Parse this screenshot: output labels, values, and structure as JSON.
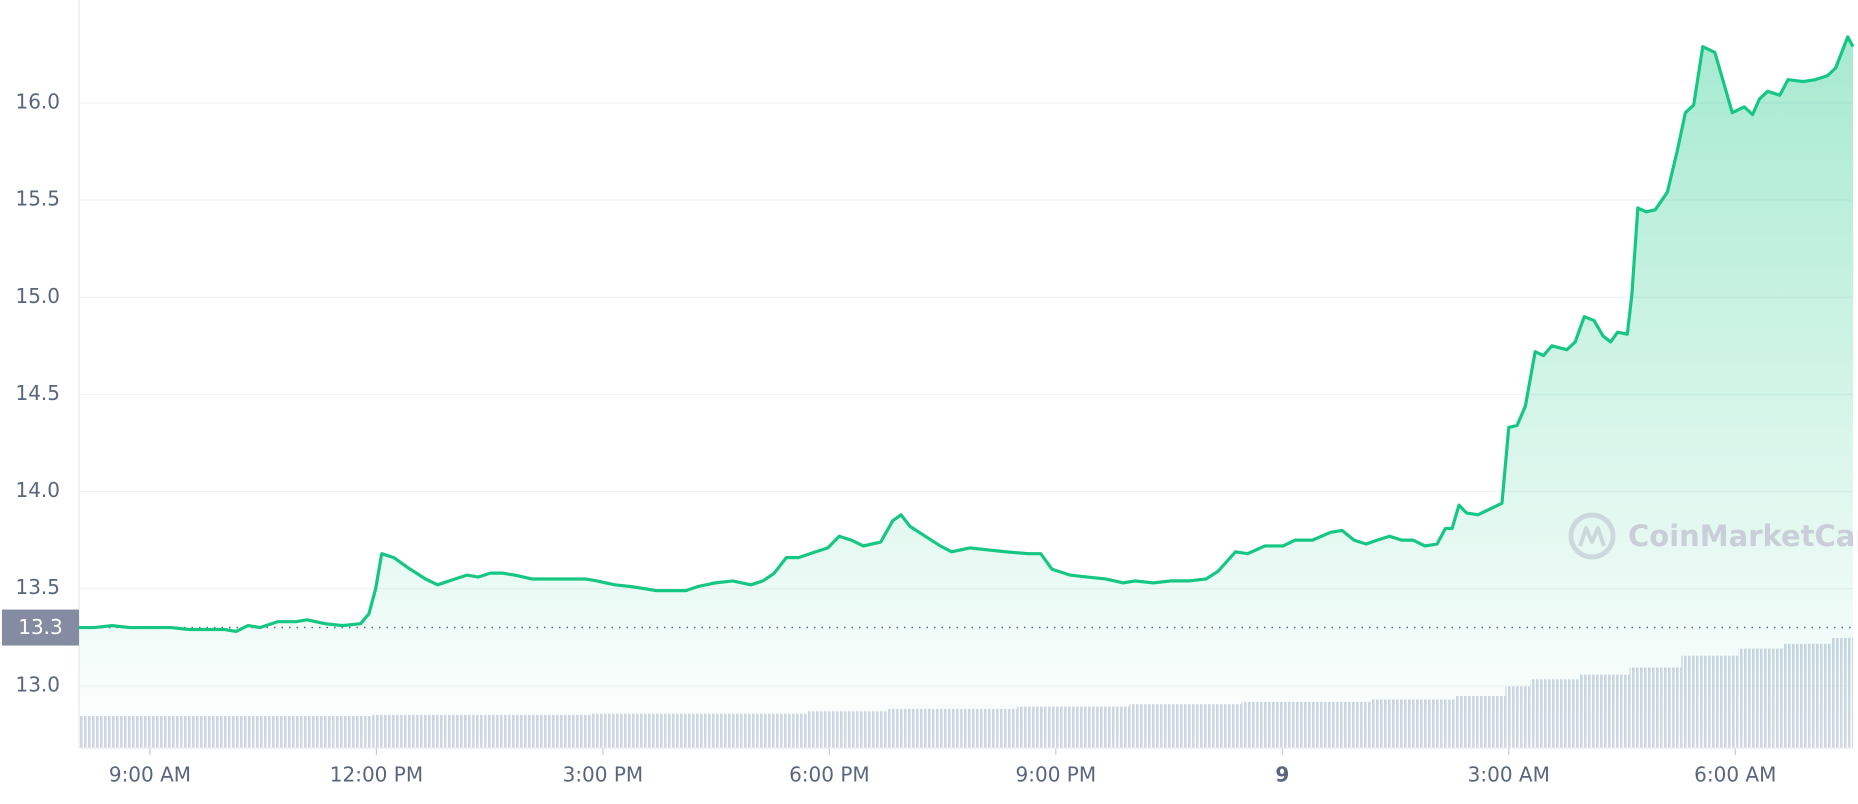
{
  "chart_data": {
    "type": "line",
    "color": "#16c784",
    "x": [
      -0.94,
      -0.74,
      -0.5,
      -0.27,
      0,
      0.28,
      0.52,
      0.75,
      0.99,
      1.14,
      1.3,
      1.46,
      1.69,
      1.93,
      2.08,
      2.32,
      2.55,
      2.79,
      2.9,
      2.99,
      3.07,
      3.23,
      3.41,
      3.65,
      3.81,
      4.04,
      4.2,
      4.35,
      4.51,
      4.67,
      4.83,
      5.06,
      5.3,
      5.53,
      5.77,
      5.92,
      6.16,
      6.39,
      6.71,
      6.94,
      7.1,
      7.25,
      7.49,
      7.72,
      7.96,
      8.12,
      8.27,
      8.43,
      8.59,
      8.82,
      8.98,
      9.13,
      9.29,
      9.45,
      9.68,
      9.84,
      9.95,
      10.07,
      10.31,
      10.47,
      10.62,
      10.86,
      11.09,
      11.33,
      11.64,
      11.8,
      11.95,
      12.19,
      12.42,
      12.66,
      12.89,
      13.05,
      13.29,
      13.52,
      13.76,
      13.99,
      14.15,
      14.38,
      14.54,
      14.77,
      15.01,
      15.17,
      15.4,
      15.64,
      15.79,
      15.95,
      16.11,
      16.26,
      16.42,
      16.58,
      16.73,
      16.89,
      17.05,
      17.16,
      17.25,
      17.34,
      17.44,
      17.59,
      17.75,
      17.91,
      18.0,
      18.11,
      18.22,
      18.35,
      18.46,
      18.57,
      18.77,
      18.88,
      19.0,
      19.13,
      19.25,
      19.35,
      19.44,
      19.57,
      19.63,
      19.71,
      19.82,
      19.94,
      20.1,
      20.23,
      20.34,
      20.45,
      20.57,
      20.73,
      20.85,
      20.96,
      21.12,
      21.23,
      21.32,
      21.43,
      21.59,
      21.7,
      21.9,
      22.06,
      22.22,
      22.33,
      22.49,
      22.56
    ],
    "values": [
      13.3,
      13.3,
      13.31,
      13.3,
      13.3,
      13.3,
      13.29,
      13.29,
      13.29,
      13.28,
      13.31,
      13.3,
      13.33,
      13.33,
      13.34,
      13.32,
      13.31,
      13.32,
      13.37,
      13.5,
      13.68,
      13.66,
      13.61,
      13.55,
      13.52,
      13.55,
      13.57,
      13.56,
      13.58,
      13.58,
      13.57,
      13.55,
      13.55,
      13.55,
      13.55,
      13.54,
      13.52,
      13.51,
      13.49,
      13.49,
      13.49,
      13.51,
      13.53,
      13.54,
      13.52,
      13.54,
      13.58,
      13.66,
      13.66,
      13.69,
      13.71,
      13.77,
      13.75,
      13.72,
      13.74,
      13.85,
      13.88,
      13.82,
      13.76,
      13.72,
      13.69,
      13.71,
      13.7,
      13.69,
      13.68,
      13.68,
      13.6,
      13.57,
      13.56,
      13.55,
      13.53,
      13.54,
      13.53,
      13.54,
      13.54,
      13.55,
      13.59,
      13.69,
      13.68,
      13.72,
      13.72,
      13.75,
      13.75,
      13.79,
      13.8,
      13.75,
      13.73,
      13.75,
      13.77,
      13.75,
      13.75,
      13.72,
      13.73,
      13.81,
      13.81,
      13.93,
      13.89,
      13.88,
      13.91,
      13.94,
      14.33,
      14.34,
      14.44,
      14.72,
      14.7,
      14.75,
      14.73,
      14.77,
      14.9,
      14.88,
      14.8,
      14.77,
      14.82,
      14.81,
      15.01,
      15.46,
      15.44,
      15.45,
      15.54,
      15.75,
      15.95,
      15.99,
      16.29,
      16.26,
      16.1,
      15.95,
      15.98,
      15.94,
      16.02,
      16.06,
      16.04,
      16.12,
      16.11,
      16.12,
      16.14,
      16.18,
      16.34,
      16.29
    ],
    "volume": [
      27,
      27,
      27,
      27,
      27,
      27,
      27,
      27,
      27,
      27,
      27,
      27,
      27,
      27,
      27,
      27,
      27,
      27,
      27,
      28,
      28,
      28,
      28,
      28,
      28,
      28,
      28,
      28,
      28,
      28,
      28,
      28,
      28,
      28,
      28,
      29,
      29,
      29,
      29,
      29,
      29,
      29,
      29,
      29,
      29,
      29,
      29,
      29,
      29,
      31,
      31,
      31,
      31,
      31,
      31,
      33,
      33,
      33,
      33,
      33,
      33,
      33,
      33,
      33,
      35,
      35,
      35,
      35,
      35,
      35,
      35,
      37,
      37,
      37,
      37,
      37,
      37,
      37,
      39,
      39,
      39,
      39,
      39,
      39,
      39,
      39,
      39,
      41,
      41,
      41,
      41,
      41,
      41,
      41,
      41,
      44,
      44,
      44,
      44,
      44,
      52,
      52,
      52,
      58,
      58,
      58,
      58,
      58,
      62,
      62,
      62,
      62,
      62,
      62,
      68,
      68,
      68,
      68,
      68,
      68,
      78,
      78,
      78,
      78,
      78,
      78,
      84,
      84,
      84,
      84,
      84,
      88,
      88,
      88,
      88,
      93,
      93,
      93
    ],
    "volume_lim": [
      0,
      632
    ],
    "volume_color": "#cfd6e4",
    "xlim": [
      -0.94,
      22.56
    ],
    "ylim": [
      12.68,
      16.53
    ],
    "yticks": [
      {
        "value": 13,
        "label": "13.0"
      },
      13.5,
      {
        "value": 14,
        "label": "14.0"
      },
      14.5,
      {
        "value": 15,
        "label": "15.0"
      },
      15.5,
      {
        "value": 16,
        "label": "16.0"
      }
    ],
    "xticks": [
      {
        "value": 0,
        "label": "9:00 AM"
      },
      {
        "value": 3,
        "label": "12:00 PM"
      },
      {
        "value": 6,
        "label": "3:00 PM"
      },
      {
        "value": 9,
        "label": "6:00 PM"
      },
      {
        "value": 12,
        "label": "9:00 PM"
      },
      {
        "value": 15,
        "label": "9"
      },
      {
        "value": 18,
        "label": "3:00 AM"
      },
      {
        "value": 21,
        "label": "6:00 AM"
      }
    ],
    "reference_price": 13.3,
    "watermark": "CoinMarketCap",
    "grid": true
  }
}
